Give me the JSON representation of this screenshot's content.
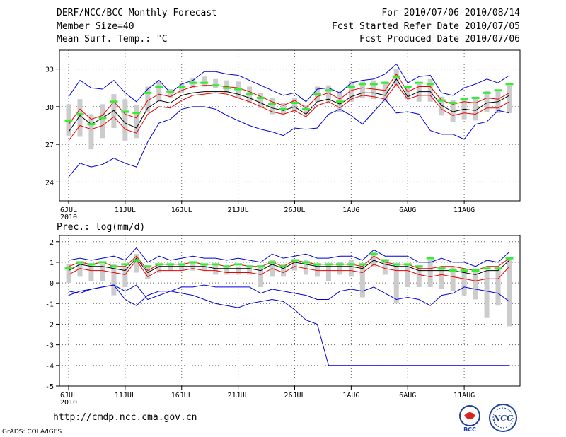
{
  "header": {
    "title": "DERF/NCC/BCC Monthly Forecast",
    "member_size": "Member Size=40",
    "variable": "Mean Surf. Temp.: °C",
    "forecast_period": "For 2010/07/06-2010/08/14",
    "start_ref_date": "Fcst Started Refer Date 2010/07/05",
    "produced_date": "Fcst Produced Date 2010/07/06"
  },
  "footer": {
    "url": "http://cmdp.ncc.cma.gov.cn",
    "credit": "GrADS: COLA/IGES",
    "logo_left": "BCC",
    "logo_right": "NCC"
  },
  "colors": {
    "ensemble_max": "#0000dd",
    "ensemble_min": "#0000dd",
    "upper_line": "#ee0000",
    "lower_line": "#ee0000",
    "ensemble_mean": "#000000",
    "median_marker": "#33ee33",
    "spread_bar": "#cccccc",
    "grid": "#666666"
  },
  "chart_data": [
    {
      "type": "line",
      "title": "Mean Surf. Temp.: °C",
      "x_start_label": "2010",
      "xticks": [
        "6JUL",
        "11JUL",
        "16JUL",
        "21JUL",
        "26JUL",
        "1AUG",
        "6AUG",
        "11AUG"
      ],
      "yticks": [
        "24",
        "27",
        "30",
        "33"
      ],
      "ylim": [
        22.5,
        34.5
      ],
      "days": 40,
      "series": [
        {
          "name": "max",
          "values": [
            30.8,
            32.1,
            31.5,
            31.4,
            32.1,
            31.1,
            30.4,
            31.4,
            32.1,
            31.1,
            31.8,
            32.1,
            32.8,
            32.8,
            32.6,
            32.5,
            32.1,
            31.7,
            31.3,
            30.9,
            31.1,
            30.4,
            31.4,
            31.5,
            31.1,
            31.9,
            32.1,
            32.2,
            32.6,
            33.4,
            31.9,
            32.4,
            32.5,
            31.1,
            30.9,
            31.5,
            31.8,
            32.2,
            31.9,
            32.5
          ]
        },
        {
          "name": "upper",
          "values": [
            28.6,
            29.8,
            29.0,
            29.3,
            30.4,
            29.4,
            29.1,
            30.5,
            31.0,
            30.8,
            31.3,
            31.6,
            31.7,
            31.7,
            31.6,
            31.5,
            31.2,
            30.8,
            30.4,
            30.1,
            30.5,
            29.9,
            30.8,
            31.1,
            30.6,
            31.3,
            31.5,
            31.4,
            31.3,
            32.6,
            31.2,
            31.6,
            31.6,
            30.5,
            30.2,
            30.4,
            30.3,
            30.7,
            30.6,
            31.1
          ]
        },
        {
          "name": "mean",
          "values": [
            28.0,
            29.3,
            28.6,
            29.1,
            29.7,
            28.7,
            28.3,
            29.9,
            30.5,
            30.3,
            30.9,
            31.1,
            31.2,
            31.2,
            31.2,
            31.0,
            30.7,
            30.3,
            29.9,
            29.7,
            30.0,
            29.4,
            30.4,
            30.6,
            30.2,
            30.8,
            31.1,
            31.1,
            30.9,
            32.2,
            30.8,
            31.2,
            31.2,
            30.1,
            29.6,
            29.8,
            29.7,
            30.3,
            30.4,
            30.9
          ]
        },
        {
          "name": "lower",
          "values": [
            27.3,
            28.5,
            28.2,
            28.5,
            29.2,
            28.2,
            27.9,
            29.4,
            30.0,
            29.9,
            30.5,
            30.9,
            31.0,
            31.1,
            31.0,
            30.7,
            30.4,
            30.0,
            29.6,
            29.4,
            29.7,
            29.2,
            30.1,
            30.4,
            29.9,
            30.6,
            30.9,
            30.8,
            30.6,
            31.8,
            30.6,
            30.9,
            30.9,
            29.8,
            29.3,
            29.5,
            29.4,
            29.9,
            29.9,
            30.4
          ]
        },
        {
          "name": "min",
          "values": [
            24.4,
            25.5,
            25.2,
            25.4,
            25.9,
            25.5,
            25.2,
            27.2,
            28.7,
            29.0,
            29.8,
            30.0,
            30.0,
            29.8,
            29.3,
            28.9,
            28.5,
            28.2,
            28.0,
            27.7,
            28.3,
            28.2,
            28.3,
            29.4,
            29.8,
            29.3,
            28.6,
            29.6,
            30.6,
            29.5,
            29.6,
            29.4,
            28.1,
            27.8,
            27.8,
            27.4,
            28.6,
            28.8,
            29.7,
            29.5
          ]
        }
      ],
      "medians": [
        28.9,
        29.4,
        28.6,
        29.1,
        30.4,
        29.6,
        29.5,
        31.1,
        31.6,
        31.2,
        31.6,
        31.9,
        31.9,
        31.7,
        31.5,
        31.4,
        31.0,
        30.7,
        30.2,
        29.8,
        30.3,
        29.8,
        31.0,
        31.3,
        30.4,
        31.6,
        31.8,
        31.8,
        31.9,
        32.4,
        31.6,
        31.9,
        31.8,
        30.5,
        30.3,
        30.6,
        30.7,
        31.1,
        31.3,
        31.8
      ],
      "bar_top": [
        30.2,
        30.6,
        29.4,
        30.2,
        31.0,
        30.6,
        30.1,
        31.6,
        32.0,
        31.4,
        31.9,
        32.3,
        32.4,
        32.2,
        32.1,
        32.0,
        31.6,
        31.1,
        30.7,
        30.3,
        30.7,
        30.1,
        31.6,
        31.7,
        31.2,
        32.0,
        32.0,
        32.1,
        32.0,
        33.0,
        31.6,
        31.8,
        32.2,
        30.8,
        30.5,
        30.6,
        30.8,
        31.3,
        31.2,
        31.7
      ],
      "bar_bot": [
        27.7,
        27.6,
        26.6,
        27.5,
        28.3,
        27.3,
        27.5,
        29.6,
        30.4,
        30.7,
        31.1,
        31.5,
        31.6,
        31.5,
        31.1,
        30.7,
        30.3,
        29.9,
        29.4,
        29.4,
        29.6,
        29.4,
        30.4,
        30.4,
        29.6,
        30.4,
        30.7,
        30.6,
        30.4,
        31.6,
        30.6,
        30.4,
        30.4,
        29.3,
        28.8,
        29.0,
        28.9,
        29.6,
        29.5,
        29.5
      ]
    },
    {
      "type": "line",
      "title": "Prec.: log(mm/d)",
      "x_start_label": "2010",
      "xticks": [
        "6JUL",
        "11JUL",
        "16JUL",
        "21JUL",
        "26JUL",
        "1AUG",
        "6AUG",
        "11AUG"
      ],
      "yticks": [
        "-5",
        "-4",
        "-3",
        "-2",
        "-1",
        "0",
        "1",
        "2"
      ],
      "ylim": [
        -5,
        2.3
      ],
      "days": 40,
      "series": [
        {
          "name": "max",
          "values": [
            1.1,
            1.2,
            1.1,
            1.2,
            1.3,
            1.1,
            1.7,
            1.0,
            1.3,
            1.1,
            1.2,
            1.3,
            1.2,
            1.2,
            1.1,
            1.2,
            1.1,
            1.0,
            1.4,
            1.2,
            1.3,
            1.4,
            1.2,
            1.2,
            1.3,
            1.3,
            1.1,
            1.6,
            1.3,
            1.3,
            1.3,
            1.0,
            1.0,
            1.2,
            1.0,
            1.0,
            0.8,
            1.1,
            1.0,
            1.5
          ]
        },
        {
          "name": "upper",
          "values": [
            0.8,
            1.0,
            0.9,
            1.0,
            0.8,
            0.8,
            1.3,
            0.6,
            0.9,
            0.9,
            0.9,
            1.0,
            0.9,
            0.9,
            0.8,
            0.9,
            0.8,
            0.8,
            1.0,
            0.8,
            1.1,
            1.0,
            0.9,
            0.9,
            0.9,
            0.9,
            0.8,
            1.3,
            1.0,
            0.9,
            0.9,
            0.7,
            0.7,
            0.8,
            0.8,
            0.7,
            0.6,
            0.8,
            0.8,
            1.2
          ]
        },
        {
          "name": "mean",
          "values": [
            0.6,
            0.9,
            0.8,
            0.8,
            0.7,
            0.6,
            1.2,
            0.5,
            0.8,
            0.8,
            0.8,
            0.8,
            0.8,
            0.7,
            0.7,
            0.7,
            0.7,
            0.6,
            0.9,
            0.7,
            1.0,
            0.9,
            0.8,
            0.8,
            0.8,
            0.8,
            0.7,
            1.1,
            0.9,
            0.8,
            0.8,
            0.6,
            0.6,
            0.6,
            0.6,
            0.5,
            0.4,
            0.6,
            0.6,
            1.1
          ]
        },
        {
          "name": "lower",
          "values": [
            0.4,
            0.7,
            0.6,
            0.6,
            0.5,
            0.4,
            1.1,
            0.3,
            0.6,
            0.6,
            0.6,
            0.7,
            0.6,
            0.6,
            0.5,
            0.5,
            0.5,
            0.4,
            0.7,
            0.5,
            0.8,
            0.7,
            0.6,
            0.6,
            0.6,
            0.6,
            0.5,
            0.9,
            0.7,
            0.6,
            0.6,
            0.4,
            0.3,
            0.4,
            0.3,
            0.2,
            0.1,
            0.2,
            0.2,
            0.8
          ]
        },
        {
          "name": "min",
          "values": [
            -0.6,
            -0.4,
            -0.3,
            -0.2,
            -0.1,
            -0.4,
            -0.1,
            -0.8,
            -0.6,
            -0.4,
            -0.2,
            -0.2,
            -0.1,
            -0.2,
            -0.2,
            -0.2,
            -0.2,
            -0.5,
            -0.3,
            -0.4,
            -0.5,
            -0.6,
            -0.8,
            -0.8,
            -0.4,
            -0.3,
            -0.4,
            -0.2,
            -0.5,
            -0.8,
            -0.7,
            -0.8,
            -1.1,
            -0.6,
            -0.5,
            -0.2,
            -0.3,
            -0.4,
            -0.5,
            -0.9
          ]
        },
        {
          "name": "min_tail",
          "values": [
            -0.4,
            -0.5,
            -0.3,
            -0.2,
            -0.1,
            -0.8,
            -1.1,
            -0.6,
            -0.4,
            -0.4,
            -0.5,
            -0.6,
            -0.8,
            -1.0,
            -1.1,
            -1.2,
            -1.0,
            -0.9,
            -0.8,
            -0.9,
            -1.3,
            -1.8,
            -2.0,
            -4.0,
            -4.0,
            -4.0,
            -4.0,
            -4.0,
            -4.0,
            -4.0,
            -4.0,
            -4.0,
            -4.0,
            -4.0,
            -4.0,
            -4.0,
            -4.0,
            -4.0,
            -4.0,
            -4.0
          ]
        }
      ],
      "medians": [
        0.7,
        1.0,
        0.9,
        1.0,
        0.8,
        0.9,
        1.1,
        0.8,
        0.9,
        0.9,
        0.9,
        1.0,
        0.9,
        0.9,
        0.8,
        0.9,
        0.8,
        0.8,
        1.0,
        0.8,
        1.1,
        1.0,
        0.9,
        0.9,
        0.9,
        0.9,
        0.9,
        1.4,
        1.1,
        0.9,
        0.9,
        0.8,
        1.2,
        0.7,
        0.6,
        0.6,
        0.6,
        0.7,
        0.7,
        1.2
      ],
      "bar_top": [
        0.9,
        1.0,
        0.9,
        0.9,
        0.9,
        0.8,
        1.4,
        0.8,
        0.9,
        0.9,
        0.9,
        1.0,
        0.9,
        0.9,
        0.8,
        0.8,
        0.8,
        0.8,
        1.1,
        0.9,
        1.1,
        1.1,
        0.9,
        0.9,
        1.0,
        1.1,
        0.8,
        1.5,
        1.1,
        0.9,
        0.9,
        0.8,
        1.1,
        0.8,
        0.8,
        0.6,
        0.7,
        0.6,
        0.7,
        1.2
      ],
      "bar_bot": [
        0.0,
        0.3,
        0.1,
        0.1,
        -0.6,
        -0.2,
        0.5,
        0.2,
        0.5,
        0.6,
        0.6,
        0.6,
        0.6,
        0.4,
        0.4,
        0.4,
        0.4,
        -0.2,
        0.3,
        0.3,
        0.6,
        0.4,
        0.3,
        0.1,
        0.4,
        0.3,
        -0.7,
        0.8,
        0.4,
        -1.0,
        -0.2,
        -0.2,
        -0.2,
        -0.3,
        -0.4,
        -0.6,
        -0.8,
        -1.7,
        -1.1,
        -2.1
      ]
    }
  ]
}
